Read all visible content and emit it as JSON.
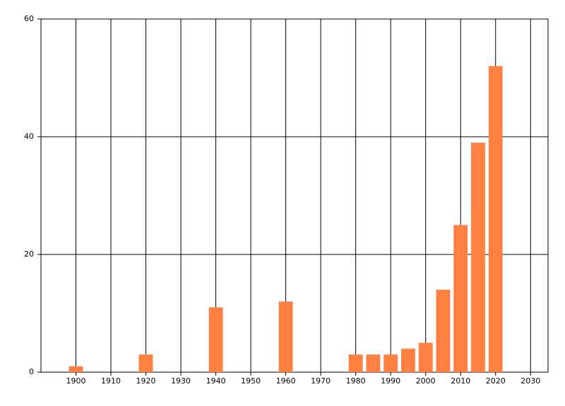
{
  "chart_data": {
    "type": "bar",
    "x": [
      1900,
      1920,
      1940,
      1960,
      1980,
      1985,
      1990,
      1995,
      2000,
      2005,
      2010,
      2015,
      2020
    ],
    "values": [
      1,
      3,
      11,
      12,
      3,
      3,
      3,
      4,
      5,
      14,
      25,
      39,
      52
    ],
    "color": "#ff8040",
    "xlim": [
      1890,
      2035
    ],
    "xticks": [
      1900,
      1910,
      1920,
      1930,
      1940,
      1950,
      1960,
      1970,
      1980,
      1990,
      2000,
      2010,
      2020,
      2030
    ],
    "ylim": [
      0,
      60
    ],
    "yticks": [
      0,
      20,
      40,
      60
    ],
    "grid": true
  }
}
